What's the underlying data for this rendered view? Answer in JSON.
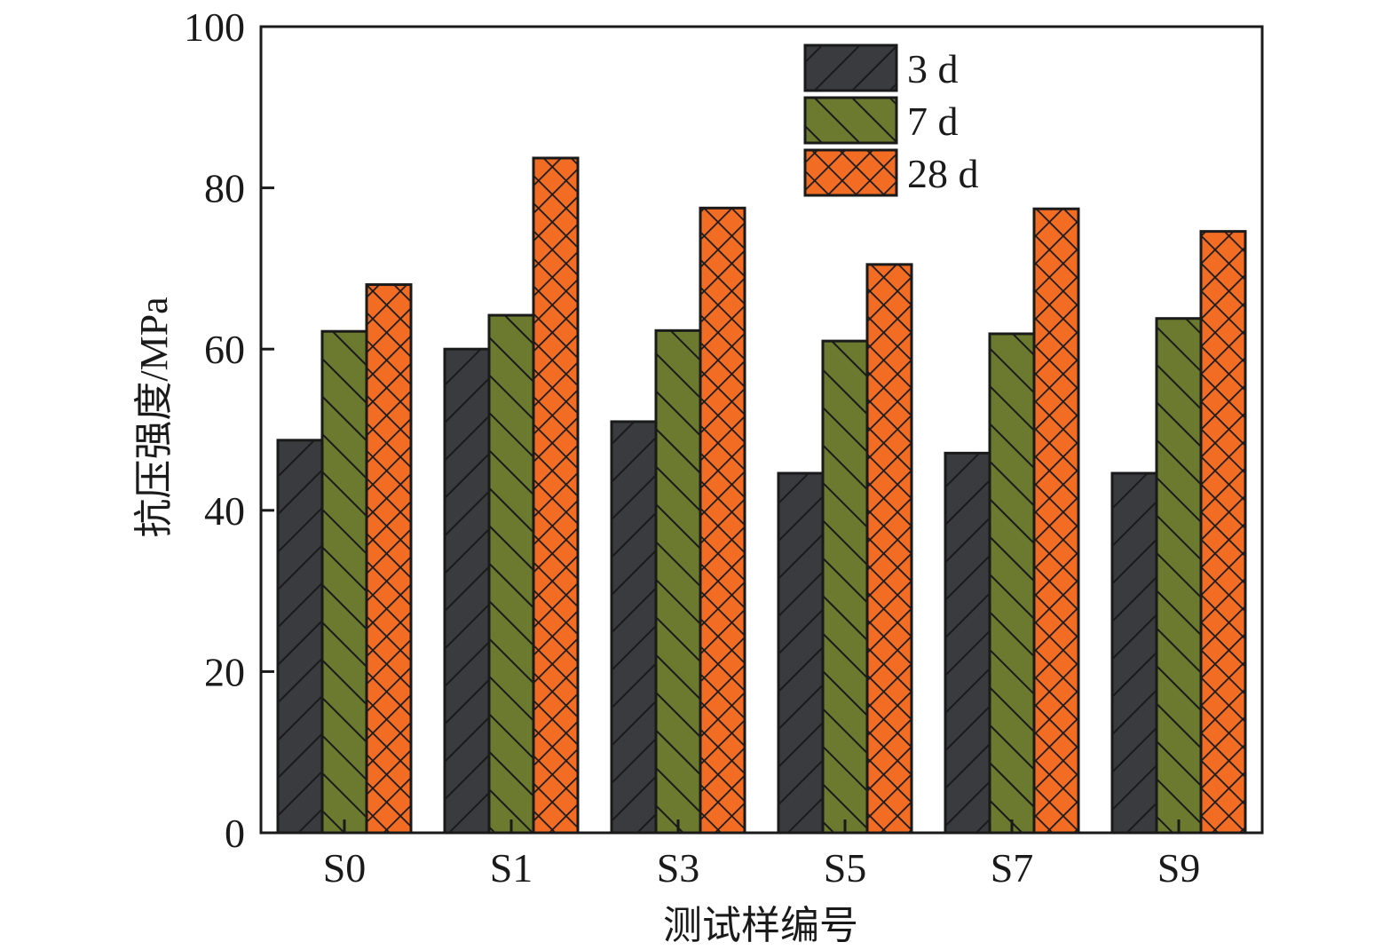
{
  "chart_data": {
    "type": "bar",
    "title": "",
    "xlabel": "测试样编号",
    "ylabel": "抗压强度/MPa",
    "ylim": [
      0,
      100
    ],
    "yticks": [
      0,
      20,
      40,
      60,
      80,
      100
    ],
    "ytick_labels": [
      "0",
      "20",
      "40",
      "60",
      "80",
      "100"
    ],
    "grid": false,
    "legend_position": "top-right",
    "categories": [
      "S0",
      "S1",
      "S3",
      "S5",
      "S7",
      "S9"
    ],
    "series": [
      {
        "name": "3 d",
        "color": "#3a3b3f",
        "hatch": "forward-diagonal",
        "values": [
          48.7,
          60.0,
          51.0,
          44.6,
          47.1,
          44.6
        ]
      },
      {
        "name": "7 d",
        "color": "#6b7a2e",
        "hatch": "back-diagonal",
        "values": [
          62.2,
          64.2,
          62.3,
          61.0,
          61.9,
          63.8
        ]
      },
      {
        "name": "28 d",
        "color": "#f26c24",
        "hatch": "crosshatch",
        "values": [
          68.0,
          83.7,
          77.5,
          70.5,
          77.4,
          74.6
        ]
      }
    ]
  }
}
